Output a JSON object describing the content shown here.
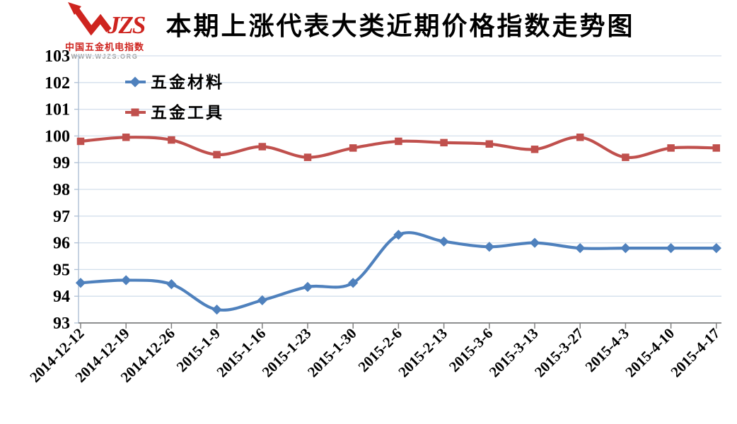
{
  "logo": {
    "brand": "JZS",
    "name": "中国五金机电指数",
    "url": "WWW.WJZS.ORG",
    "brand_color": "#ce241f",
    "url_color": "#9b9b9b"
  },
  "title": "本期上涨代表大类近期价格指数走势图",
  "chart_data": {
    "type": "line",
    "smooth": true,
    "categories": [
      "2014-12-12",
      "2014-12-19",
      "2014-12-26",
      "2015-1-9",
      "2015-1-16",
      "2015-1-23",
      "2015-1-30",
      "2015-2-6",
      "2015-2-13",
      "2015-3-6",
      "2015-3-13",
      "2015-3-27",
      "2015-4-3",
      "2015-4-10",
      "2015-4-17"
    ],
    "series": [
      {
        "name": "五金材料",
        "color": "#4f81bd",
        "marker": "diamond",
        "values": [
          94.5,
          94.6,
          94.45,
          93.5,
          93.85,
          94.35,
          94.5,
          96.3,
          96.05,
          95.85,
          96.0,
          95.8,
          95.8,
          95.8,
          95.8
        ]
      },
      {
        "name": "五金工具",
        "color": "#c0504d",
        "marker": "square",
        "values": [
          99.8,
          99.95,
          99.85,
          99.3,
          99.6,
          99.2,
          99.55,
          99.8,
          99.75,
          99.7,
          99.5,
          99.95,
          99.2,
          99.55,
          99.55
        ]
      }
    ],
    "ylim": [
      93,
      103
    ],
    "ytick_step": 1,
    "yticks": [
      "93",
      "94",
      "95",
      "96",
      "97",
      "98",
      "99",
      "100",
      "101",
      "102",
      "103"
    ],
    "grid": true,
    "legend_position": "inside-top-left",
    "colors": {
      "gridline": "#d3dfec",
      "y_axis": "#aebfd4",
      "x_axis": "#808080",
      "label": "#000000"
    }
  }
}
